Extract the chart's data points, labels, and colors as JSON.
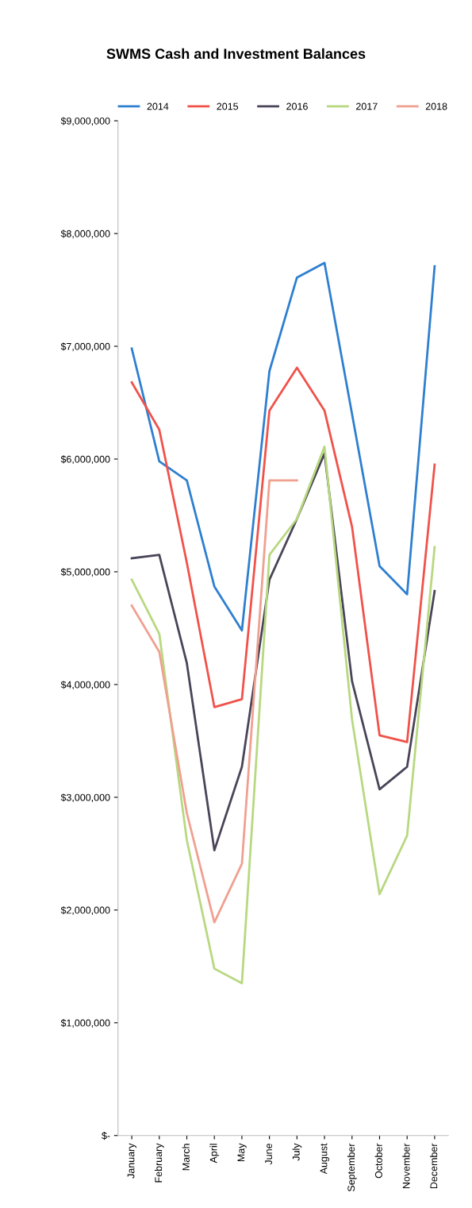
{
  "chart_data": {
    "type": "line",
    "title": "SWMS Cash and Investment Balances",
    "categories": [
      "January",
      "February",
      "March",
      "April",
      "May",
      "June",
      "July",
      "August",
      "September",
      "October",
      "November",
      "December"
    ],
    "series": [
      {
        "name": "2014",
        "color": "#2e7fd0",
        "values": [
          6980000,
          5980000,
          5810000,
          4870000,
          4480000,
          6780000,
          7610000,
          7740000,
          6400000,
          5050000,
          4800000,
          7710000
        ]
      },
      {
        "name": "2015",
        "color": "#f0524a",
        "values": [
          6680000,
          6260000,
          5080000,
          3800000,
          3870000,
          6430000,
          6810000,
          6430000,
          5400000,
          3550000,
          3490000,
          5950000
        ]
      },
      {
        "name": "2016",
        "color": "#4a4458",
        "values": [
          5120000,
          5150000,
          4190000,
          2530000,
          3270000,
          4930000,
          5470000,
          6050000,
          4030000,
          3070000,
          3270000,
          4830000
        ]
      },
      {
        "name": "2017",
        "color": "#b8d880",
        "values": [
          4930000,
          4450000,
          2620000,
          1480000,
          1350000,
          5150000,
          5470000,
          6110000,
          3690000,
          2140000,
          2660000,
          5220000
        ]
      },
      {
        "name": "2018",
        "color": "#f0a090",
        "values": [
          4700000,
          4290000,
          2860000,
          1890000,
          2410000,
          5810000,
          5810000,
          null,
          null,
          null,
          null,
          null
        ]
      }
    ],
    "ylim": [
      0,
      9000000
    ],
    "yticks": [
      {
        "value": 0,
        "label": "$-"
      },
      {
        "value": 1000000,
        "label": "$1,000,000"
      },
      {
        "value": 2000000,
        "label": "$2,000,000"
      },
      {
        "value": 3000000,
        "label": "$3,000,000"
      },
      {
        "value": 4000000,
        "label": "$4,000,000"
      },
      {
        "value": 5000000,
        "label": "$5,000,000"
      },
      {
        "value": 6000000,
        "label": "$6,000,000"
      },
      {
        "value": 7000000,
        "label": "$7,000,000"
      },
      {
        "value": 8000000,
        "label": "$8,000,000"
      },
      {
        "value": 9000000,
        "label": "$9,000,000"
      }
    ],
    "grid": false,
    "legend": "top",
    "marker": "none",
    "line_style": "solid"
  }
}
